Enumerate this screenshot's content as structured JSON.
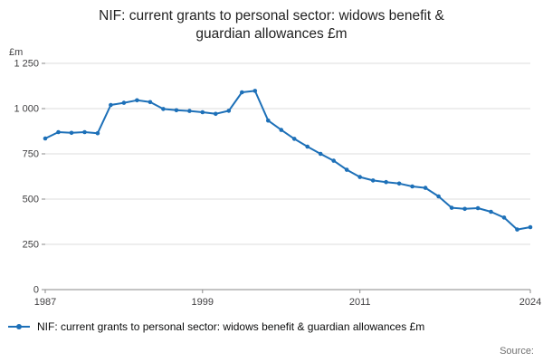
{
  "title_lines": [
    "NIF: current grants to personal sector: widows benefit &",
    "guardian allowances £m"
  ],
  "legend": {
    "label": "NIF: current grants to personal sector: widows benefit & guardian allowances £m"
  },
  "source_label": "Source:",
  "colors": {
    "line": "#1d70b8",
    "grid": "#dcdcdc",
    "axis": "#8a8a8a",
    "text": "#414042"
  },
  "chart_data": {
    "type": "line",
    "title": "NIF: current grants to personal sector: widows benefit & guardian allowances £m",
    "xlabel": "",
    "ylabel": "£m",
    "ylim": [
      0,
      1250
    ],
    "yticks": [
      0,
      250,
      500,
      750,
      1000,
      1250
    ],
    "ytick_labels": [
      "0",
      "250",
      "500",
      "750",
      "1 000",
      "1 250"
    ],
    "xticks": [
      1987,
      1999,
      2011,
      2024
    ],
    "grid": true,
    "legend_position": "bottom",
    "marker": "circle",
    "x": [
      1987,
      1988,
      1989,
      1990,
      1991,
      1992,
      1993,
      1994,
      1995,
      1996,
      1997,
      1998,
      1999,
      2000,
      2001,
      2002,
      2003,
      2004,
      2005,
      2006,
      2007,
      2008,
      2009,
      2010,
      2011,
      2012,
      2013,
      2014,
      2015,
      2016,
      2017,
      2018,
      2019,
      2020,
      2021,
      2022,
      2023,
      2024
    ],
    "series": [
      {
        "name": "NIF: current grants to personal sector: widows benefit & guardian allowances £m",
        "values": [
          835,
          870,
          866,
          870,
          864,
          1020,
          1032,
          1046,
          1036,
          998,
          991,
          987,
          980,
          971,
          988,
          1090,
          1098,
          934,
          882,
          833,
          790,
          750,
          712,
          662,
          622,
          603,
          594,
          586,
          570,
          562,
          515,
          452,
          446,
          450,
          430,
          398,
          332,
          345
        ]
      }
    ]
  }
}
